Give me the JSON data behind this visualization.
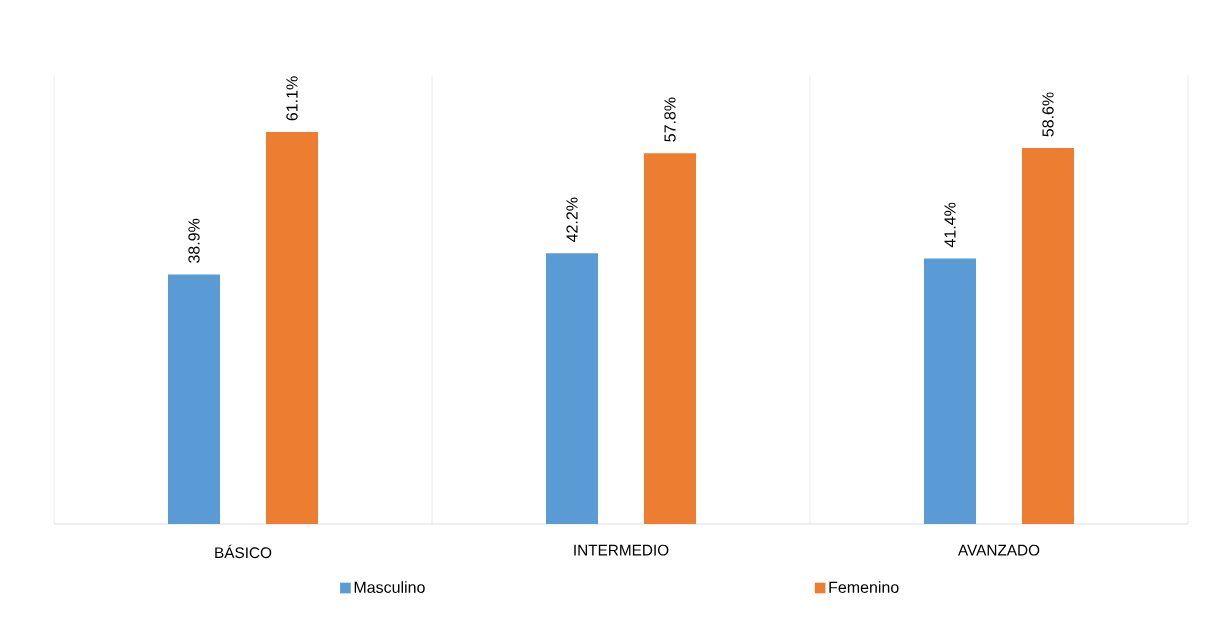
{
  "chart_data": {
    "type": "bar",
    "categories": [
      "BÁSICO",
      "INTERMEDIO",
      "AVANZADO"
    ],
    "series": [
      {
        "name": "Masculino",
        "color": "#5b9bd5",
        "values": [
          38.9,
          42.2,
          41.4
        ],
        "value_labels": [
          "38.9%",
          "42.2%",
          "41.4%"
        ]
      },
      {
        "name": "Femenino",
        "color": "#ed7d31",
        "values": [
          61.1,
          57.8,
          58.6
        ],
        "value_labels": [
          "61.1%",
          "57.8%",
          "58.6%"
        ]
      }
    ],
    "ylim": [
      0,
      70
    ],
    "tick_labels": "x",
    "grid": "x",
    "legend": "bottom"
  }
}
